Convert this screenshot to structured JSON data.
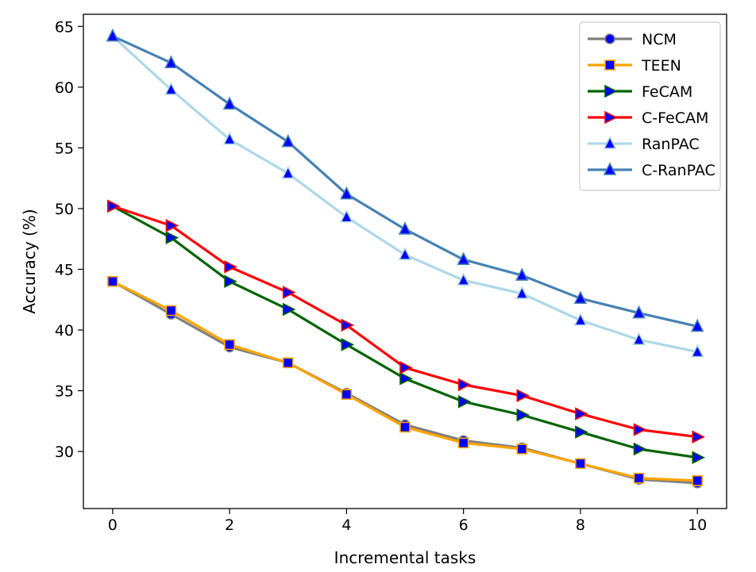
{
  "chart_data": {
    "type": "line",
    "title": "",
    "xlabel": "Incremental tasks",
    "ylabel": "Accuracy (%)",
    "xlim": [
      -0.5,
      10.5
    ],
    "ylim": [
      25.3,
      66.0
    ],
    "xticks": [
      0,
      2,
      4,
      6,
      8,
      10
    ],
    "yticks": [
      30,
      35,
      40,
      45,
      50,
      55,
      60,
      65
    ],
    "grid": false,
    "legend_position": "top-right",
    "x": [
      0,
      1,
      2,
      3,
      4,
      5,
      6,
      7,
      8,
      9,
      10
    ],
    "series": [
      {
        "name": "NCM",
        "color": "#808080",
        "marker": "circle",
        "marker_color": "#0000ff",
        "values": [
          44.0,
          41.3,
          38.6,
          37.3,
          34.8,
          32.2,
          30.9,
          30.3,
          29.0,
          27.7,
          27.4
        ]
      },
      {
        "name": "TEEN",
        "color": "#ffa500",
        "marker": "square",
        "marker_color": "#0000ff",
        "values": [
          44.0,
          41.6,
          38.8,
          37.3,
          34.7,
          32.0,
          30.7,
          30.2,
          29.0,
          27.8,
          27.6
        ]
      },
      {
        "name": "FeCAM",
        "color": "#006400",
        "marker": "triangle-right",
        "marker_color": "#0000ff",
        "values": [
          50.2,
          47.6,
          44.0,
          41.7,
          38.8,
          36.0,
          34.1,
          33.0,
          31.6,
          30.2,
          29.5
        ]
      },
      {
        "name": "C-FeCAM",
        "color": "#ff0000",
        "marker": "triangle-right",
        "marker_color": "#0000ff",
        "values": [
          50.2,
          48.6,
          45.2,
          43.1,
          40.4,
          36.9,
          35.5,
          34.6,
          33.1,
          31.8,
          31.2
        ]
      },
      {
        "name": "RanPAC",
        "color": "#add8e6",
        "marker": "triangle-up",
        "marker_color": "#0000ff",
        "values": [
          64.2,
          59.8,
          55.7,
          52.9,
          49.3,
          46.2,
          44.1,
          43.0,
          40.8,
          39.2,
          38.2
        ]
      },
      {
        "name": "C-RanPAC",
        "color": "#4682b4",
        "marker": "triangle-up",
        "marker_color": "#0000ff",
        "values": [
          64.2,
          62.0,
          58.6,
          55.5,
          51.2,
          48.3,
          45.8,
          44.5,
          42.6,
          41.4,
          40.3
        ]
      }
    ]
  }
}
